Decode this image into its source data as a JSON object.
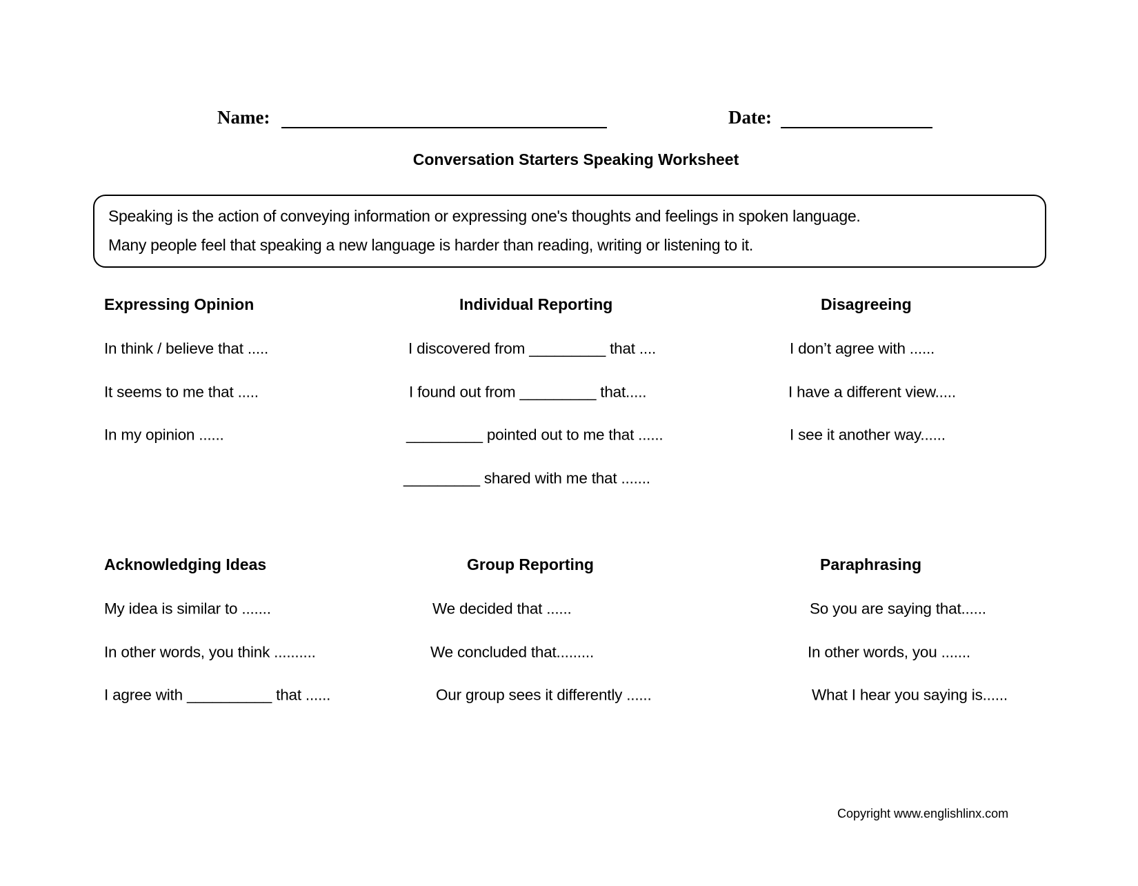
{
  "header": {
    "name_label": "Name:",
    "date_label": "Date:"
  },
  "title": "Conversation Starters Speaking Worksheet",
  "intro": [
    "Speaking is the action of conveying information or expressing one's thoughts and feelings in spoken language.",
    "Many people feel that speaking a new language is harder than reading, writing or listening to it."
  ],
  "sections": [
    {
      "heading": "Expressing Opinion",
      "items": [
        "In think / believe that .....",
        "It seems to me that .....",
        "In my opinion ......"
      ]
    },
    {
      "heading": "Individual Reporting",
      "items": [
        "I discovered from _________ that ....",
        "I found out from _________ that.....",
        "_________ pointed out to me that ......",
        "_________ shared with me that ......."
      ]
    },
    {
      "heading": "Disagreeing",
      "items": [
        "I don’t agree with ......",
        "I have a different view.....",
        "I see it another way......"
      ]
    },
    {
      "heading": "Acknowledging Ideas",
      "items": [
        "My idea is similar to .......",
        "In other words, you think ..........",
        "I agree with __________ that ......"
      ]
    },
    {
      "heading": "Group Reporting",
      "items": [
        "We decided that ......",
        "We concluded that.........",
        "Our group sees it differently ......"
      ]
    },
    {
      "heading": "Paraphrasing",
      "items": [
        "So you are saying that......",
        "In other words, you .......",
        "What I hear you saying is......"
      ]
    }
  ],
  "footer": {
    "copyright": "Copyright www.englishlinx.com"
  }
}
